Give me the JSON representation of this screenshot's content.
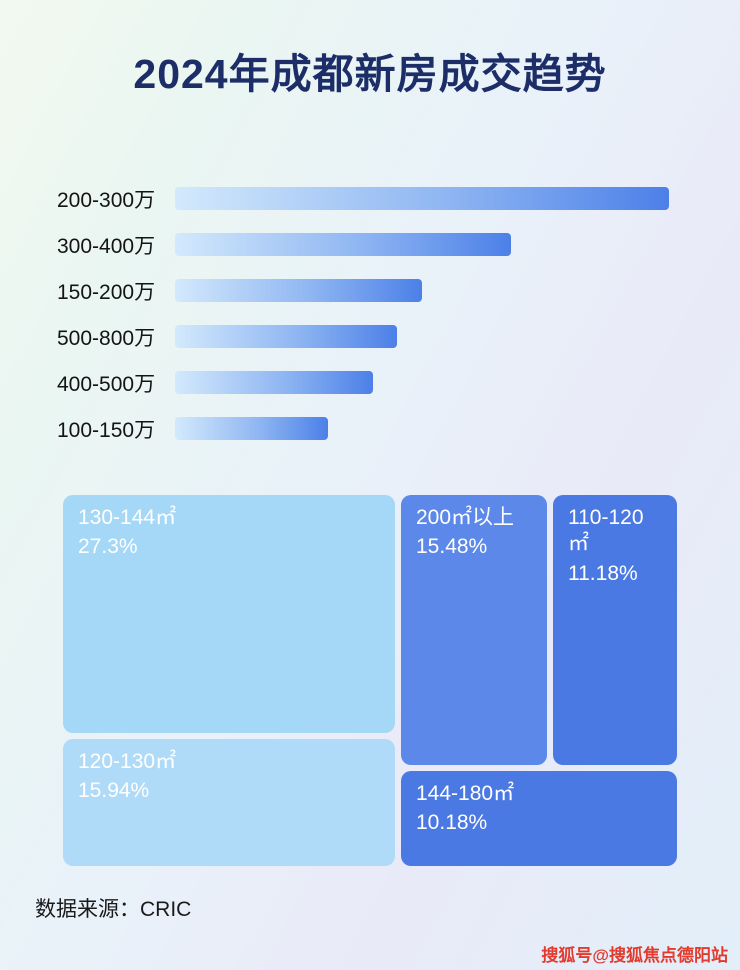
{
  "page": {
    "title": "2024年成都新房成交趋势",
    "source": "数据来源：CRIC",
    "watermark": "搜狐号@搜狐焦点德阳站"
  },
  "colors": {
    "title_text": "#1c2d68",
    "bar_gradient_start": "#d3e9fc",
    "bar_gradient_end": "#4c80e8",
    "treemap_light_blue": "#a5d7f6",
    "treemap_lighter_blue": "#afdbf8",
    "treemap_medium_blue": "#5c88e9",
    "treemap_royal_blue": "#4b79e4",
    "watermark_red": "#e23b2e"
  },
  "chart_data": [
    {
      "type": "bar",
      "title": "",
      "orientation": "horizontal",
      "categories": [
        "200-300万",
        "300-400万",
        "150-200万",
        "500-800万",
        "400-500万",
        "100-150万"
      ],
      "values_relative_pct": [
        100,
        68,
        50,
        45,
        40,
        31
      ],
      "xlabel": "",
      "ylabel": "",
      "axis_shown": false,
      "grid": false,
      "value_labels_shown": false,
      "legend": "none"
    },
    {
      "type": "treemap",
      "title": "",
      "cells": [
        {
          "label": "130-144㎡",
          "value_pct": 27.3,
          "value_text": "27.3%",
          "color": "#a5d7f6"
        },
        {
          "label": "120-130㎡",
          "value_pct": 15.94,
          "value_text": "15.94%",
          "color": "#afdbf8"
        },
        {
          "label": "200㎡以上",
          "value_pct": 15.48,
          "value_text": "15.48%",
          "color": "#5c88e9"
        },
        {
          "label": "110-120㎡",
          "value_pct": 11.18,
          "value_text": "11.18%",
          "color": "#4b79e4"
        },
        {
          "label": "144-180㎡",
          "value_pct": 10.18,
          "value_text": "10.18%",
          "color": "#4b79e4"
        }
      ],
      "legend": "none"
    }
  ]
}
